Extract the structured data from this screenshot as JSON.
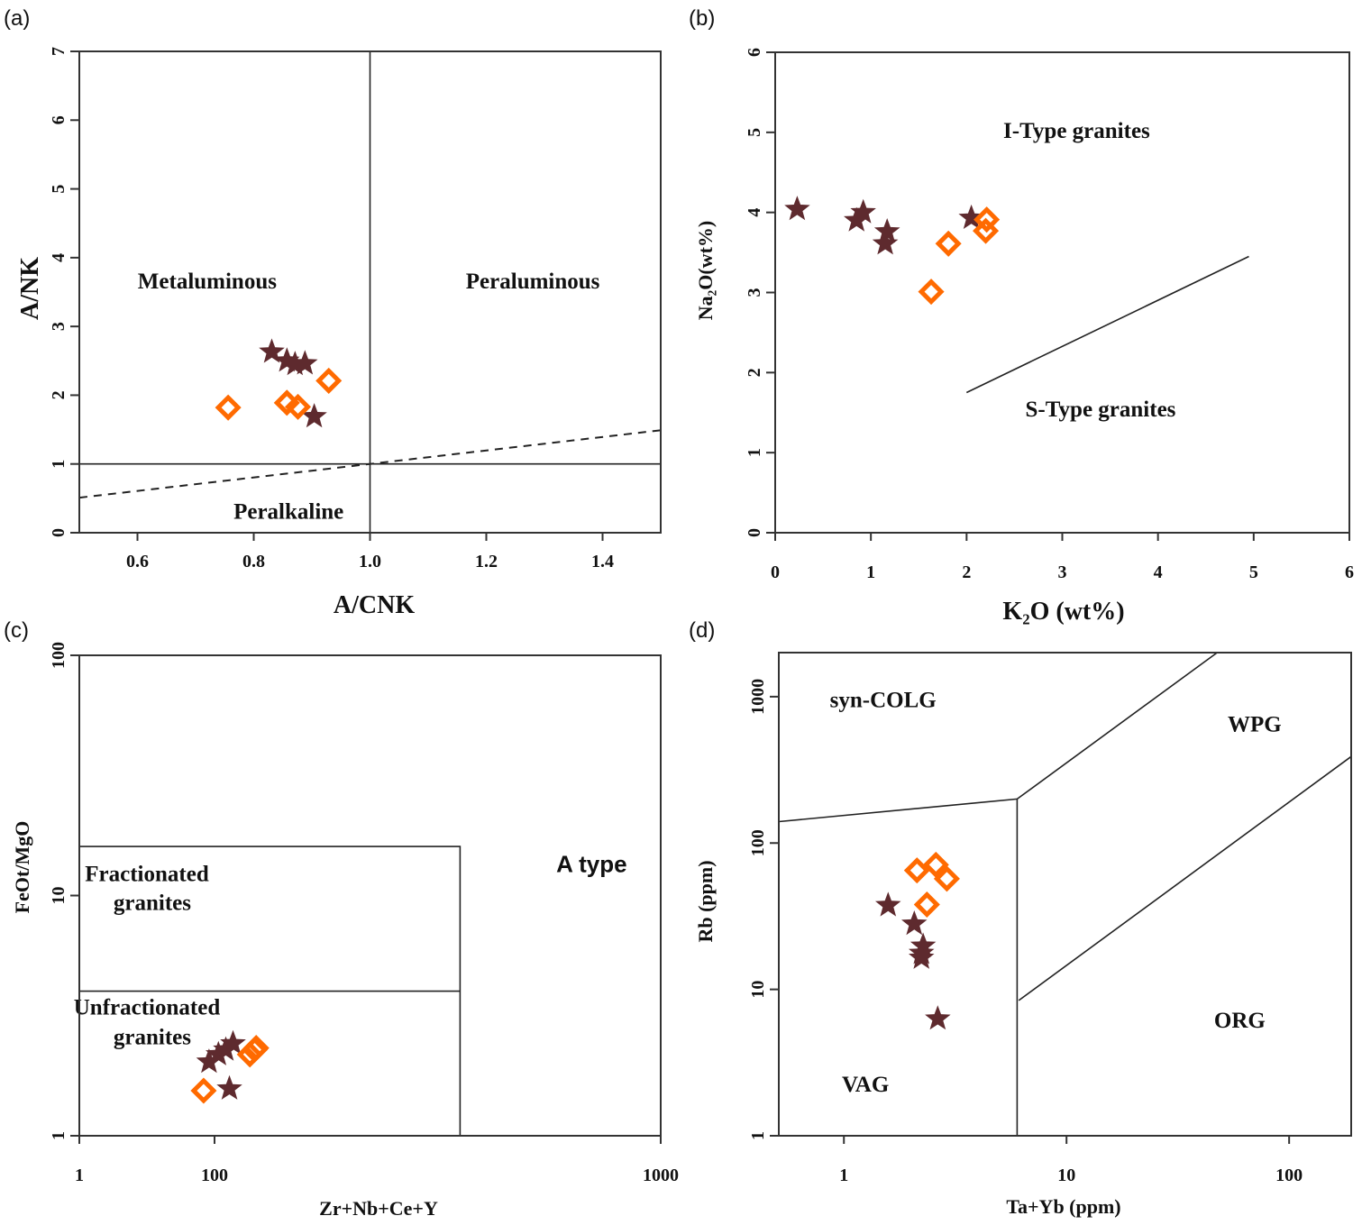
{
  "colors": {
    "star": "#5e2a2e",
    "diamond": "#ff6a00",
    "line": "#222222"
  },
  "chart_data": [
    {
      "id": "a",
      "type": "scatter",
      "panel_label": "(a)",
      "xlabel": "A/CNK",
      "ylabel": "A/NK",
      "xscale": "linear",
      "yscale": "linear",
      "xlim": [
        0.5,
        1.5
      ],
      "ylim": [
        0,
        7
      ],
      "xticks": [
        0.6,
        0.8,
        1.0,
        1.2,
        1.4
      ],
      "xtick_labels": [
        "0.6",
        "0.8",
        "1.0",
        "1.2",
        "1.4"
      ],
      "yticks": [
        0,
        1,
        2,
        3,
        4,
        5,
        6,
        7
      ],
      "ytick_labels": [
        "0",
        "1",
        "2",
        "3",
        "4",
        "5",
        "6",
        "7"
      ],
      "regions": [
        {
          "label": "Metaluminous",
          "x": 0.72,
          "y": 3.55
        },
        {
          "label": "Peraluminous",
          "x": 1.28,
          "y": 3.55
        },
        {
          "label": "Peralkaline",
          "x": 0.86,
          "y": 0.2
        }
      ],
      "boundaries": [
        {
          "style": "solid",
          "points": [
            [
              1.0,
              0
            ],
            [
              1.0,
              7
            ]
          ]
        },
        {
          "style": "solid",
          "points": [
            [
              0.5,
              1.0
            ],
            [
              1.5,
              1.0
            ]
          ]
        },
        {
          "style": "dashed",
          "points": [
            [
              0.5,
              0.51
            ],
            [
              1.5,
              1.49
            ]
          ]
        }
      ],
      "series": [
        {
          "name": "stars",
          "marker": "star",
          "points": [
            [
              0.831,
              2.63
            ],
            [
              0.857,
              2.5
            ],
            [
              0.871,
              2.45
            ],
            [
              0.888,
              2.46
            ],
            [
              0.904,
              1.69
            ]
          ]
        },
        {
          "name": "diamonds",
          "marker": "diamond",
          "points": [
            [
              0.756,
              1.82
            ],
            [
              0.857,
              1.89
            ],
            [
              0.876,
              1.83
            ],
            [
              0.929,
              2.21
            ]
          ]
        }
      ]
    },
    {
      "id": "b",
      "type": "scatter",
      "panel_label": "(b)",
      "xlabel": "K₂O (wt%)",
      "ylabel": "Na₂O(wt%)",
      "xscale": "linear",
      "yscale": "linear",
      "xlim": [
        0,
        6
      ],
      "ylim": [
        0,
        6
      ],
      "xticks": [
        0,
        1,
        2,
        3,
        4,
        5,
        6
      ],
      "xtick_labels": [
        "0",
        "1",
        "2",
        "3",
        "4",
        "5",
        "6"
      ],
      "yticks": [
        0,
        1,
        2,
        3,
        4,
        5,
        6
      ],
      "ytick_labels": [
        "0",
        "1",
        "2",
        "3",
        "4",
        "5",
        "6"
      ],
      "regions": [
        {
          "label": "I-Type granites",
          "x": 3.15,
          "y": 4.93
        },
        {
          "label": "S-Type granites",
          "x": 3.4,
          "y": 1.45
        }
      ],
      "boundaries": [
        {
          "style": "solid",
          "points": [
            [
              2.0,
              1.75
            ],
            [
              4.95,
              3.45
            ]
          ]
        }
      ],
      "series": [
        {
          "name": "stars",
          "marker": "star",
          "points": [
            [
              0.23,
              4.04
            ],
            [
              0.92,
              4.0
            ],
            [
              0.85,
              3.9
            ],
            [
              1.17,
              3.76
            ],
            [
              1.15,
              3.61
            ],
            [
              2.05,
              3.93
            ]
          ]
        },
        {
          "name": "diamonds",
          "marker": "diamond",
          "points": [
            [
              1.81,
              3.61
            ],
            [
              2.21,
              3.91
            ],
            [
              2.2,
              3.77
            ],
            [
              1.63,
              3.01
            ]
          ]
        }
      ]
    },
    {
      "id": "c",
      "type": "scatter",
      "panel_label": "(c)",
      "xlabel": "Zr+Nb+Ce+Y",
      "ylabel": "FeOt/MgO",
      "xscale": "log",
      "yscale": "log",
      "xlim": [
        1,
        1000
      ],
      "ylim": [
        1,
        100
      ],
      "xticks": [
        1,
        100,
        1000
      ],
      "xtick_labels": [
        "1",
        "100",
        "1000"
      ],
      "yticks": [
        1,
        10,
        100
      ],
      "ytick_labels": [
        "1",
        "10",
        "100"
      ],
      "regions": [
        {
          "label": "Fractionated",
          "x": 10,
          "y": 11.5
        },
        {
          "label": "granites",
          "x": 12,
          "y": 8.7
        },
        {
          "label": "Unfractionated",
          "x": 10,
          "y": 3.2
        },
        {
          "label": "granites",
          "x": 12,
          "y": 2.4
        },
        {
          "label": "A type",
          "x": 700,
          "y": 12.5
        }
      ],
      "boundaries": [
        {
          "style": "solid",
          "points": [
            [
              1,
              16
            ],
            [
              355,
              16
            ],
            [
              355,
              1
            ]
          ]
        },
        {
          "style": "solid",
          "points": [
            [
              1,
              4
            ],
            [
              355,
              4
            ]
          ]
        }
      ],
      "series": [
        {
          "name": "stars",
          "marker": "star",
          "points": [
            [
              83,
              2.03
            ],
            [
              102,
              2.18
            ],
            [
              106,
              2.28
            ],
            [
              110,
              2.42
            ],
            [
              108,
              1.57
            ]
          ]
        },
        {
          "name": "diamonds",
          "marker": "diamond",
          "points": [
            [
              69,
              1.54
            ],
            [
              120,
              2.18
            ],
            [
              124,
              2.32
            ],
            [
              123,
              2.28
            ]
          ]
        }
      ]
    },
    {
      "id": "d",
      "type": "scatter",
      "panel_label": "(d)",
      "xlabel": "Ta+Yb (ppm)",
      "ylabel": "Rb (ppm)",
      "xscale": "log",
      "yscale": "log",
      "xlim": [
        0.51,
        190
      ],
      "ylim": [
        1,
        2000
      ],
      "xticks": [
        1,
        10,
        100
      ],
      "xtick_labels": [
        "1",
        "10",
        "100"
      ],
      "yticks": [
        1,
        10,
        100,
        1000
      ],
      "ytick_labels": [
        "1",
        "10",
        "100",
        "1000"
      ],
      "regions": [
        {
          "label": "syn-COLG",
          "x": 1.5,
          "y": 850
        },
        {
          "label": "WPG",
          "x": 70,
          "y": 580
        },
        {
          "label": "VAG",
          "x": 1.25,
          "y": 2.0
        },
        {
          "label": "ORG",
          "x": 60,
          "y": 5.5
        }
      ],
      "boundaries": [
        {
          "style": "solid",
          "points": [
            [
              0.51,
              140
            ],
            [
              6.0,
              200
            ],
            [
              47.5,
              2000
            ]
          ]
        },
        {
          "style": "solid",
          "points": [
            [
              6.0,
              200
            ],
            [
              6.0,
              1
            ]
          ]
        },
        {
          "style": "solid",
          "points": [
            [
              6.1,
              8.4
            ],
            [
              190,
              390
            ]
          ]
        }
      ],
      "series": [
        {
          "name": "stars",
          "marker": "star",
          "points": [
            [
              1.58,
              37.5
            ],
            [
              2.07,
              28
            ],
            [
              2.27,
              19.8
            ],
            [
              2.23,
              17.7
            ],
            [
              2.23,
              16.4
            ],
            [
              2.64,
              6.3
            ]
          ]
        },
        {
          "name": "diamonds",
          "marker": "diamond",
          "points": [
            [
              2.13,
              65
            ],
            [
              2.59,
              71
            ],
            [
              2.9,
              57
            ],
            [
              2.36,
              38
            ]
          ]
        }
      ]
    }
  ]
}
